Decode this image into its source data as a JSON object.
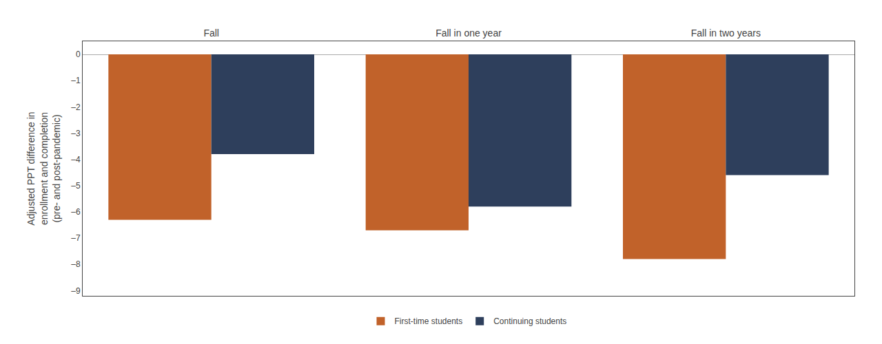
{
  "chart_data": {
    "type": "bar",
    "categories": [
      "Fall",
      "Fall in one year",
      "Fall in two years"
    ],
    "series": [
      {
        "name": "First-time students",
        "color": "#C1622A",
        "values": [
          -6.3,
          -6.7,
          -7.8
        ]
      },
      {
        "name": "Continuing students",
        "color": "#2E3F5C",
        "values": [
          -3.8,
          -5.8,
          -4.6
        ]
      }
    ],
    "ylabel": "Adjusted PPT difference in\nenrollment and completion\n(pre- and post-pandemic)",
    "ylim": [
      -9.2,
      0.5
    ],
    "yticks": [
      0,
      {
        "value": -1,
        "label": "–1"
      },
      {
        "value": -2,
        "label": "–2"
      },
      {
        "value": -3,
        "label": "–3"
      },
      {
        "value": -4,
        "label": "–4"
      },
      {
        "value": -5,
        "label": "–5"
      },
      {
        "value": -6,
        "label": "–6"
      },
      {
        "value": -7,
        "label": "–7"
      },
      {
        "value": -8,
        "label": "–8"
      },
      {
        "value": -9,
        "label": "–9"
      }
    ],
    "grid": false,
    "legend": "bottom"
  }
}
